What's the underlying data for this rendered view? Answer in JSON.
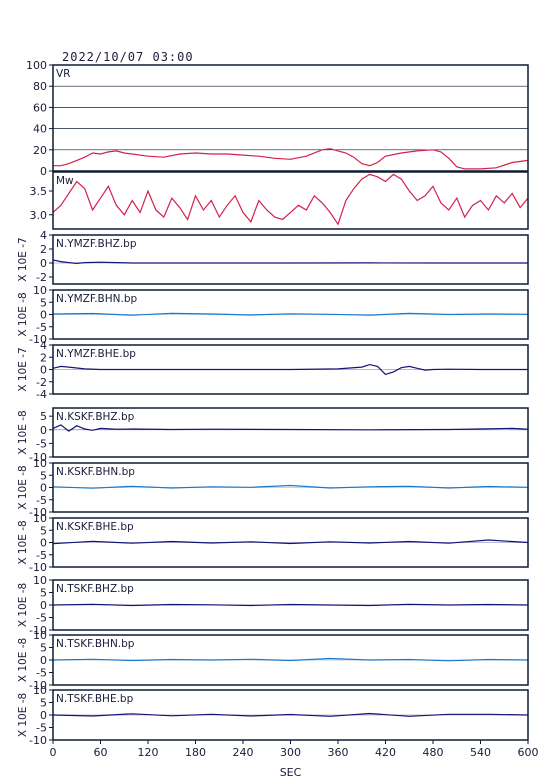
{
  "title": "2022/10/07  03:00",
  "colors": {
    "frame": "#0d1b33",
    "vr": "#d4204d",
    "mw": "#d4204d",
    "dark": "#141478",
    "light": "#1e78c8",
    "grid": "#0d1b33"
  },
  "chart_data": [
    {
      "type": "line",
      "label": "VR",
      "ylim": [
        0,
        100
      ],
      "yticks": [
        0,
        20,
        40,
        60,
        80,
        100
      ],
      "grid": true,
      "color": "vr",
      "x": [
        0,
        10,
        20,
        30,
        40,
        50,
        60,
        70,
        80,
        90,
        100,
        120,
        140,
        160,
        180,
        200,
        220,
        240,
        260,
        280,
        300,
        320,
        340,
        350,
        360,
        370,
        380,
        390,
        400,
        410,
        420,
        440,
        460,
        480,
        490,
        500,
        510,
        520,
        540,
        560,
        580,
        600
      ],
      "y": [
        5,
        5,
        7,
        10,
        13,
        17,
        16,
        18,
        19,
        17,
        16,
        14,
        13,
        16,
        17,
        16,
        16,
        15,
        14,
        12,
        11,
        14,
        20,
        21,
        19,
        17,
        13,
        7,
        5,
        8,
        14,
        17,
        19,
        20,
        18,
        12,
        4,
        2,
        2,
        3,
        8,
        10
      ]
    },
    {
      "type": "line",
      "label": "Mw",
      "ylim": [
        2.7,
        3.9
      ],
      "yticks": [
        3.0,
        3.5
      ],
      "ytick_labels": [
        "3.0",
        "3.5"
      ],
      "grid": false,
      "color": "mw",
      "x": [
        0,
        10,
        20,
        30,
        40,
        50,
        60,
        70,
        80,
        90,
        100,
        110,
        120,
        130,
        140,
        150,
        160,
        170,
        180,
        190,
        200,
        210,
        220,
        230,
        240,
        250,
        260,
        270,
        280,
        290,
        300,
        310,
        320,
        330,
        340,
        350,
        360,
        370,
        380,
        390,
        400,
        410,
        420,
        430,
        440,
        450,
        460,
        470,
        480,
        490,
        500,
        510,
        520,
        530,
        540,
        550,
        560,
        570,
        580,
        590,
        600
      ],
      "y": [
        3.05,
        3.2,
        3.45,
        3.7,
        3.55,
        3.1,
        3.35,
        3.6,
        3.2,
        3.0,
        3.3,
        3.05,
        3.5,
        3.1,
        2.95,
        3.35,
        3.15,
        2.9,
        3.4,
        3.1,
        3.3,
        2.95,
        3.2,
        3.4,
        3.05,
        2.85,
        3.3,
        3.1,
        2.95,
        2.9,
        3.05,
        3.2,
        3.1,
        3.4,
        3.25,
        3.05,
        2.8,
        3.3,
        3.55,
        3.75,
        3.85,
        3.8,
        3.7,
        3.85,
        3.75,
        3.5,
        3.3,
        3.4,
        3.6,
        3.25,
        3.1,
        3.35,
        2.95,
        3.2,
        3.3,
        3.1,
        3.4,
        3.25,
        3.45,
        3.15,
        3.35
      ]
    },
    {
      "type": "line",
      "label": "N.YMZF.BHZ.bp",
      "ylim": [
        -3,
        4
      ],
      "yticks": [
        -2,
        0,
        2,
        4
      ],
      "unit_label": "X 10E -7",
      "color": "dark",
      "x": [
        0,
        10,
        20,
        30,
        40,
        60,
        80,
        100,
        200,
        300,
        400,
        500,
        600
      ],
      "y": [
        0.45,
        0.2,
        0.05,
        -0.05,
        0.05,
        0.12,
        0.05,
        0.0,
        0.0,
        0.0,
        0.02,
        0.0,
        0.0
      ]
    },
    {
      "type": "line",
      "label": "N.YMZF.BHN.bp",
      "ylim": [
        -10,
        10
      ],
      "yticks": [
        -10,
        -5,
        0,
        5,
        10
      ],
      "unit_label": "X 10E -8",
      "color": "light",
      "x": [
        0,
        50,
        100,
        150,
        200,
        250,
        300,
        350,
        400,
        450,
        500,
        550,
        600
      ],
      "y": [
        0.2,
        0.4,
        -0.3,
        0.5,
        0.2,
        -0.2,
        0.3,
        0.1,
        -0.3,
        0.5,
        0.0,
        0.2,
        0.1
      ]
    },
    {
      "type": "line",
      "label": "N.YMZF.BHE.bp",
      "ylim": [
        -4,
        4
      ],
      "yticks": [
        -4,
        -2,
        0,
        2,
        4
      ],
      "unit_label": "X 10E -7",
      "color": "dark",
      "x": [
        0,
        10,
        20,
        40,
        60,
        100,
        200,
        300,
        360,
        390,
        400,
        410,
        420,
        430,
        440,
        450,
        460,
        470,
        480,
        500,
        540,
        600
      ],
      "y": [
        0.2,
        0.5,
        0.4,
        0.1,
        0.0,
        0.0,
        0.0,
        0.0,
        0.1,
        0.4,
        0.8,
        0.5,
        -0.8,
        -0.4,
        0.3,
        0.5,
        0.2,
        -0.1,
        0.0,
        0.05,
        0.0,
        0.0
      ]
    },
    {
      "type": "line",
      "label": "N.KSKF.BHZ.bp",
      "ylim": [
        -10,
        8
      ],
      "yticks": [
        -10,
        -5,
        0,
        5
      ],
      "unit_label": "X 10E -8",
      "color": "dark",
      "x": [
        0,
        10,
        20,
        30,
        40,
        50,
        60,
        80,
        100,
        150,
        200,
        300,
        400,
        500,
        580,
        600
      ],
      "y": [
        0.5,
        1.8,
        -0.5,
        1.5,
        0.3,
        -0.2,
        0.5,
        0.2,
        0.3,
        0.1,
        0.2,
        0.1,
        0.0,
        0.1,
        0.5,
        0.2
      ]
    },
    {
      "type": "line",
      "label": "N.KSKF.BHN.bp",
      "ylim": [
        -10,
        10
      ],
      "yticks": [
        -10,
        -5,
        0,
        5,
        10
      ],
      "unit_label": "X 10E -8",
      "color": "light",
      "x": [
        0,
        50,
        100,
        150,
        200,
        250,
        300,
        350,
        400,
        450,
        500,
        550,
        600
      ],
      "y": [
        0.3,
        -0.3,
        0.5,
        -0.2,
        0.3,
        0.1,
        0.8,
        -0.2,
        0.3,
        0.5,
        -0.2,
        0.4,
        0.1
      ]
    },
    {
      "type": "line",
      "label": "N.KSKF.BHE.bp",
      "ylim": [
        -10,
        10
      ],
      "yticks": [
        -10,
        -5,
        0,
        5,
        10
      ],
      "unit_label": "X 10E -8",
      "color": "dark",
      "x": [
        0,
        50,
        100,
        150,
        200,
        250,
        300,
        350,
        400,
        450,
        500,
        550,
        600
      ],
      "y": [
        -0.5,
        0.5,
        -0.3,
        0.4,
        -0.2,
        0.3,
        -0.4,
        0.3,
        -0.2,
        0.4,
        -0.3,
        1.0,
        0.0
      ]
    },
    {
      "type": "line",
      "label": "N.TSKF.BHZ.bp",
      "ylim": [
        -10,
        10
      ],
      "yticks": [
        -10,
        -5,
        0,
        5,
        10
      ],
      "unit_label": "X 10E -8",
      "color": "dark",
      "x": [
        0,
        50,
        100,
        150,
        200,
        250,
        300,
        350,
        400,
        450,
        500,
        550,
        600
      ],
      "y": [
        0.0,
        0.3,
        -0.2,
        0.2,
        0.1,
        -0.2,
        0.2,
        0.0,
        -0.2,
        0.3,
        0.0,
        0.2,
        0.0
      ]
    },
    {
      "type": "line",
      "label": "N.TSKF.BHN.bp",
      "ylim": [
        -10,
        10
      ],
      "yticks": [
        -10,
        -5,
        0,
        5,
        10
      ],
      "unit_label": "X 10E -8",
      "color": "light",
      "x": [
        0,
        50,
        100,
        150,
        200,
        250,
        300,
        350,
        400,
        450,
        500,
        550,
        600
      ],
      "y": [
        0.0,
        0.3,
        -0.2,
        0.2,
        0.0,
        0.3,
        -0.2,
        0.6,
        0.0,
        0.2,
        -0.3,
        0.2,
        0.0
      ]
    },
    {
      "type": "line",
      "label": "N.TSKF.BHE.bp",
      "ylim": [
        -10,
        10
      ],
      "yticks": [
        -10,
        -5,
        0,
        5,
        10
      ],
      "unit_label": "X 10E -8",
      "color": "dark",
      "x": [
        0,
        50,
        100,
        150,
        200,
        250,
        300,
        350,
        400,
        450,
        500,
        550,
        600
      ],
      "y": [
        0.0,
        -0.4,
        0.5,
        -0.3,
        0.3,
        -0.4,
        0.2,
        -0.5,
        0.6,
        -0.5,
        0.3,
        0.3,
        0.0
      ]
    }
  ],
  "xaxis": {
    "label": "SEC",
    "ticks": [
      0,
      60,
      120,
      180,
      240,
      300,
      360,
      420,
      480,
      540,
      600
    ],
    "xlim": [
      0,
      600
    ]
  }
}
